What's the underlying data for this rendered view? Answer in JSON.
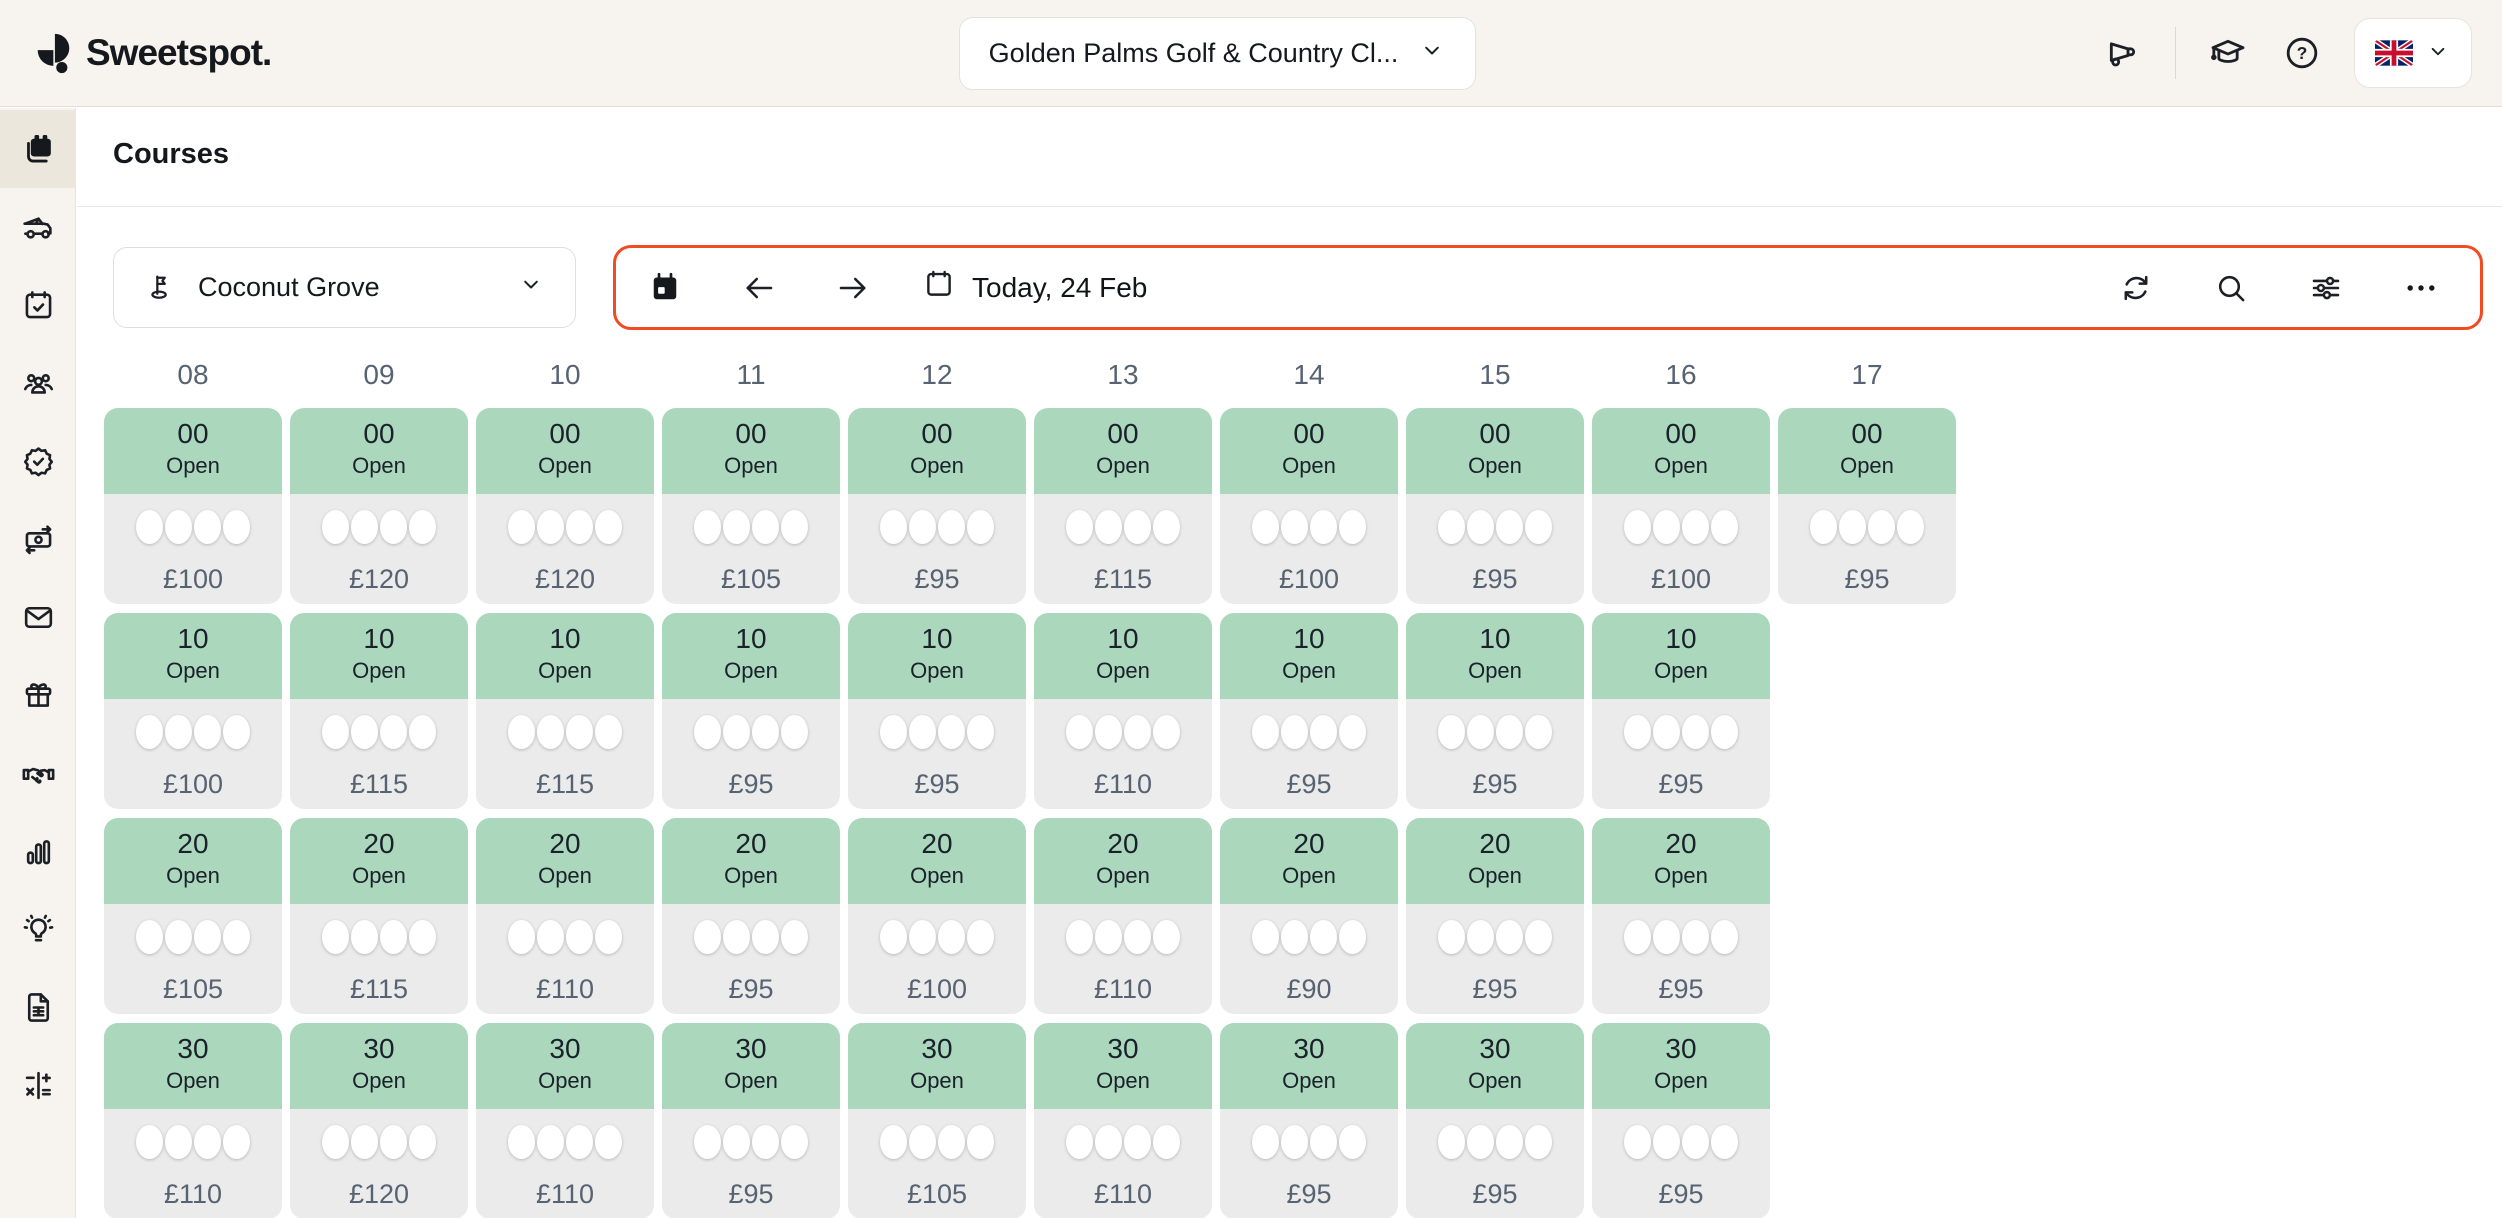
{
  "brand": {
    "logo_text": "Sweetspot."
  },
  "top_bar": {
    "club_selector": {
      "value": "Golden Palms Golf & Country Cl..."
    },
    "icons": [
      "megaphone-icon",
      "graduation-cap-icon",
      "help-icon"
    ],
    "language_selector": {
      "flag": "United Kingdom"
    }
  },
  "sidebar": {
    "items": [
      {
        "icon": "tee-sheet-calendar-icon",
        "active": true
      },
      {
        "icon": "golf-cart-icon",
        "active": false
      },
      {
        "icon": "calendar-check-icon",
        "active": false
      },
      {
        "icon": "members-icon",
        "active": false
      },
      {
        "icon": "badge-check-icon",
        "active": false
      },
      {
        "icon": "payments-icon",
        "active": false
      },
      {
        "icon": "messages-icon",
        "active": false
      },
      {
        "icon": "vouchers-gift-icon",
        "active": false
      },
      {
        "icon": "partners-handshake-icon",
        "active": false
      },
      {
        "icon": "reports-bar-chart-icon",
        "active": false
      },
      {
        "icon": "insights-lightbulb-icon",
        "active": false
      },
      {
        "icon": "documents-icon",
        "active": false
      },
      {
        "icon": "accounting-math-icon",
        "active": false
      }
    ]
  },
  "page": {
    "title": "Courses"
  },
  "filters": {
    "course_selector": {
      "value": "Coconut Grove"
    },
    "date_toolbar": {
      "today_label": "Today, 24 Feb",
      "left_icons": [
        "date-picker-calendar-icon",
        "previous-arrow-icon",
        "next-arrow-icon",
        "calendar-icon"
      ],
      "right_icons": [
        "refresh-icon",
        "search-icon",
        "filter-sliders-icon",
        "more-options-icon"
      ],
      "highlight_color": "#F04B23"
    }
  },
  "grid": {
    "columns": [
      "08",
      "09",
      "10",
      "11",
      "12",
      "13",
      "14",
      "15",
      "16",
      "17"
    ],
    "slots_per_cell": 4,
    "rows": [
      {
        "minute": "00",
        "status": "Open",
        "prices": [
          "£100",
          "£120",
          "£120",
          "£105",
          "£95",
          "£115",
          "£100",
          "£95",
          "£100",
          "£95"
        ]
      },
      {
        "minute": "10",
        "status": "Open",
        "prices": [
          "£100",
          "£115",
          "£115",
          "£95",
          "£95",
          "£110",
          "£95",
          "£95",
          "£95",
          null
        ]
      },
      {
        "minute": "20",
        "status": "Open",
        "prices": [
          "£105",
          "£115",
          "£110",
          "£95",
          "£100",
          "£110",
          "£90",
          "£95",
          "£95",
          null
        ]
      },
      {
        "minute": "30",
        "status": "Open",
        "prices": [
          "£110",
          "£120",
          "£110",
          "£95",
          "£105",
          "£110",
          "£95",
          "£95",
          "£95",
          null
        ]
      }
    ]
  },
  "colors": {
    "topbar_bg": "#F7F4EF",
    "sidebar_active_bg": "#ECE7DD",
    "accent_red": "#F04B23",
    "cell_green": "#ABD7BC",
    "cell_gray": "#EBEBEB",
    "muted_text": "#576372"
  }
}
